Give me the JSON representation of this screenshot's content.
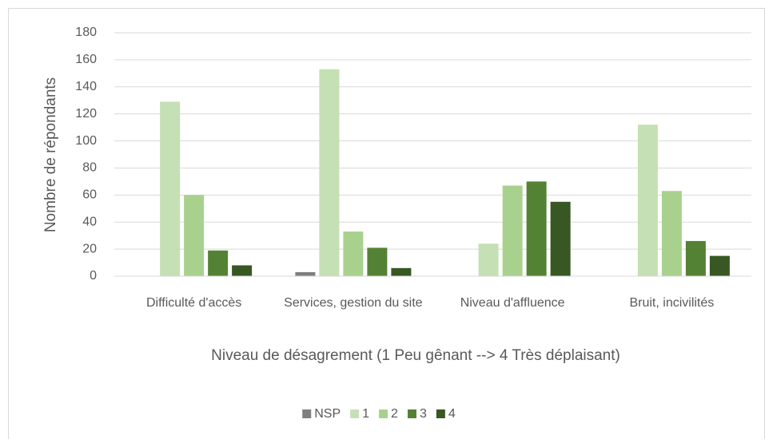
{
  "chart_data": {
    "type": "bar",
    "xlabel": "Niveau de désagrement (1 Peu gênant --> 4 Très déplaisant)",
    "ylabel": "Nombre de répondants",
    "categories": [
      "Difficulté d'accès",
      "Services, gestion du site",
      "Niveau d'affluence",
      "Bruit, incivilités"
    ],
    "series": [
      {
        "name": "NSP",
        "color": "#7f7f7f",
        "values": [
          0,
          3,
          0,
          0
        ]
      },
      {
        "name": "1",
        "color": "#c5e0b4",
        "values": [
          129,
          153,
          24,
          112
        ]
      },
      {
        "name": "2",
        "color": "#a9d18e",
        "values": [
          60,
          33,
          67,
          63
        ]
      },
      {
        "name": "3",
        "color": "#548235",
        "values": [
          19,
          21,
          70,
          26
        ]
      },
      {
        "name": "4",
        "color": "#385723",
        "values": [
          8,
          6,
          55,
          15
        ]
      }
    ],
    "ylim": [
      0,
      180
    ],
    "yticks": [
      0,
      20,
      40,
      60,
      80,
      100,
      120,
      140,
      160,
      180
    ],
    "grid": true,
    "legend": "bottom"
  }
}
